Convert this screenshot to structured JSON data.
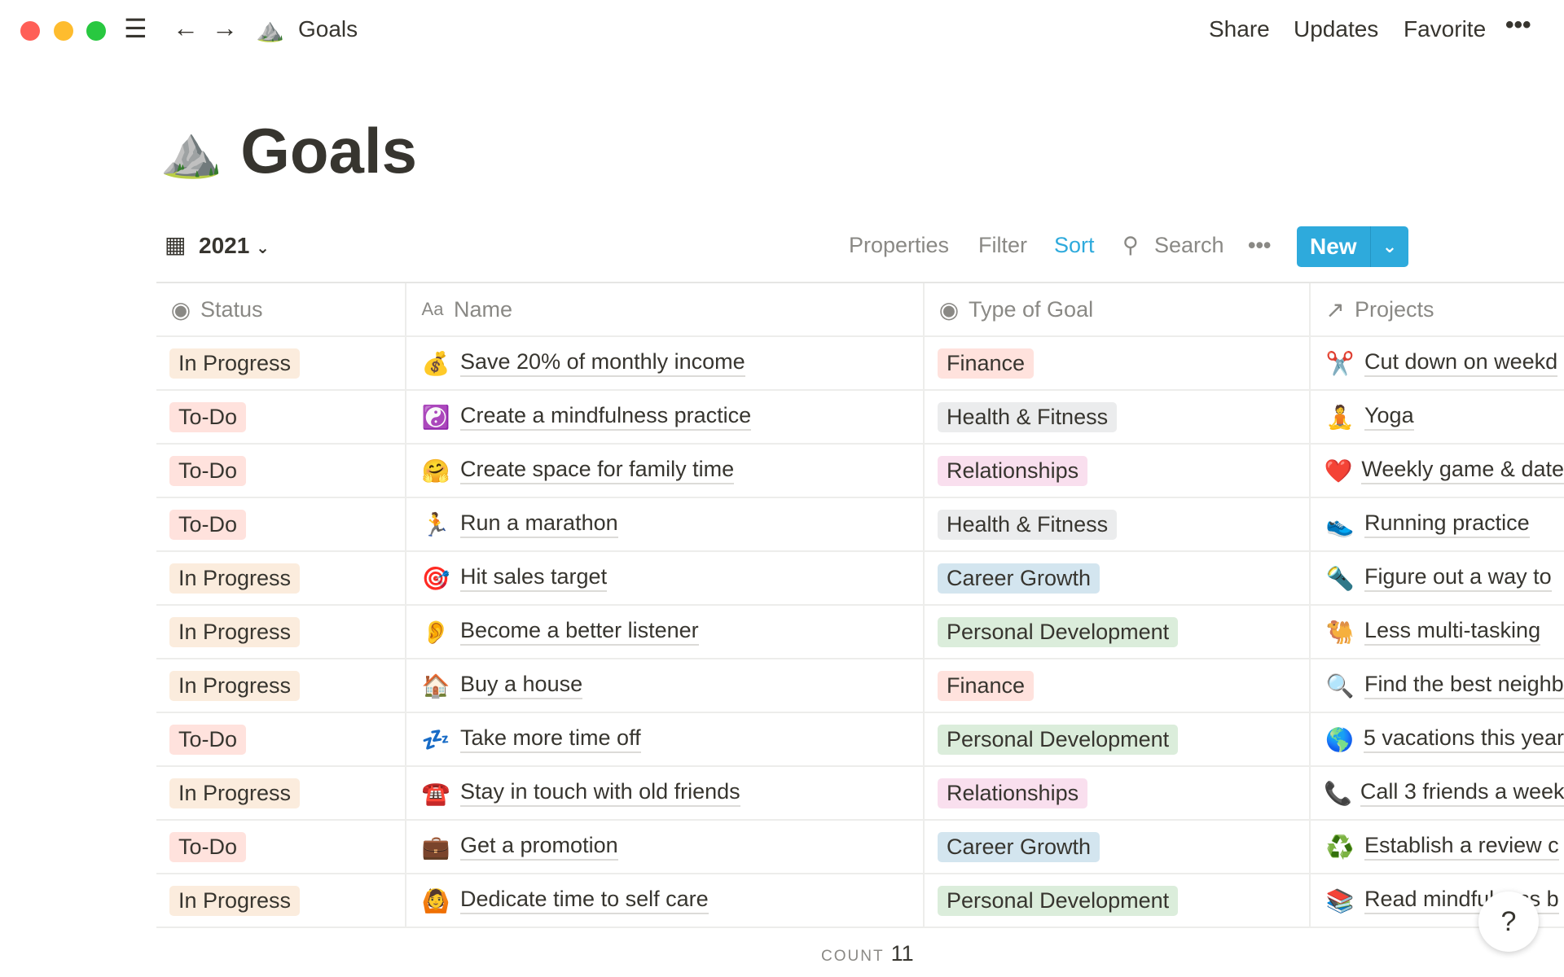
{
  "window": {
    "breadcrumb": "Goals",
    "page_emoji": "⛰️",
    "actions": [
      "Share",
      "Updates",
      "Favorite"
    ]
  },
  "page": {
    "title": "Goals"
  },
  "view": {
    "name": "2021",
    "properties": "Properties",
    "filter": "Filter",
    "sort": "Sort",
    "search": "Search",
    "new": "New"
  },
  "colors": {
    "accent": "#2eaadc",
    "in_progress": "#fbecdd",
    "todo": "#ffe2dd",
    "finance": "#ffe2dd",
    "health": "#ebeced",
    "relationships": "#f9dfee",
    "career": "#d3e5ef",
    "personal": "#dbeddb"
  },
  "table": {
    "headers": [
      "Status",
      "Name",
      "Type of Goal",
      "Projects"
    ],
    "rows": [
      {
        "status": "In Progress",
        "icon": "💰",
        "name": "Save 20% of monthly income",
        "type": "Finance",
        "picon": "✂️",
        "project": "Cut down on weekd"
      },
      {
        "status": "To-Do",
        "icon": "☯️",
        "name": "Create a mindfulness practice",
        "type": "Health & Fitness",
        "picon": "🧘",
        "project": "Yoga"
      },
      {
        "status": "To-Do",
        "icon": "🤗",
        "name": "Create space for family time",
        "type": "Relationships",
        "picon": "❤️",
        "project": "Weekly game & date"
      },
      {
        "status": "To-Do",
        "icon": "🏃",
        "name": "Run a marathon",
        "type": "Health & Fitness",
        "picon": "👟",
        "project": "Running practice"
      },
      {
        "status": "In Progress",
        "icon": "🎯",
        "name": "Hit sales target",
        "type": "Career Growth",
        "picon": "🔦",
        "project": "Figure out a way to"
      },
      {
        "status": "In Progress",
        "icon": "👂",
        "name": "Become a better listener",
        "type": "Personal Development",
        "picon": "🐫",
        "project": "Less multi-tasking"
      },
      {
        "status": "In Progress",
        "icon": "🏠",
        "name": "Buy a house",
        "type": "Finance",
        "picon": "🔍",
        "project": "Find the best neighb"
      },
      {
        "status": "To-Do",
        "icon": "💤",
        "name": "Take more time off",
        "type": "Personal Development",
        "picon": "🌎",
        "project": "5 vacations this year"
      },
      {
        "status": "In Progress",
        "icon": "☎️",
        "name": "Stay in touch with old friends",
        "type": "Relationships",
        "picon": "📞",
        "project": "Call 3 friends a week"
      },
      {
        "status": "To-Do",
        "icon": "💼",
        "name": "Get a promotion",
        "type": "Career Growth",
        "picon": "♻️",
        "project": "Establish a review c"
      },
      {
        "status": "In Progress",
        "icon": "🙆",
        "name": "Dedicate time to self care",
        "type": "Personal Development",
        "picon": "📚",
        "project": "Read mindfulness b"
      }
    ]
  },
  "footer": {
    "count_label": "COUNT",
    "count": "11"
  },
  "help": "?"
}
